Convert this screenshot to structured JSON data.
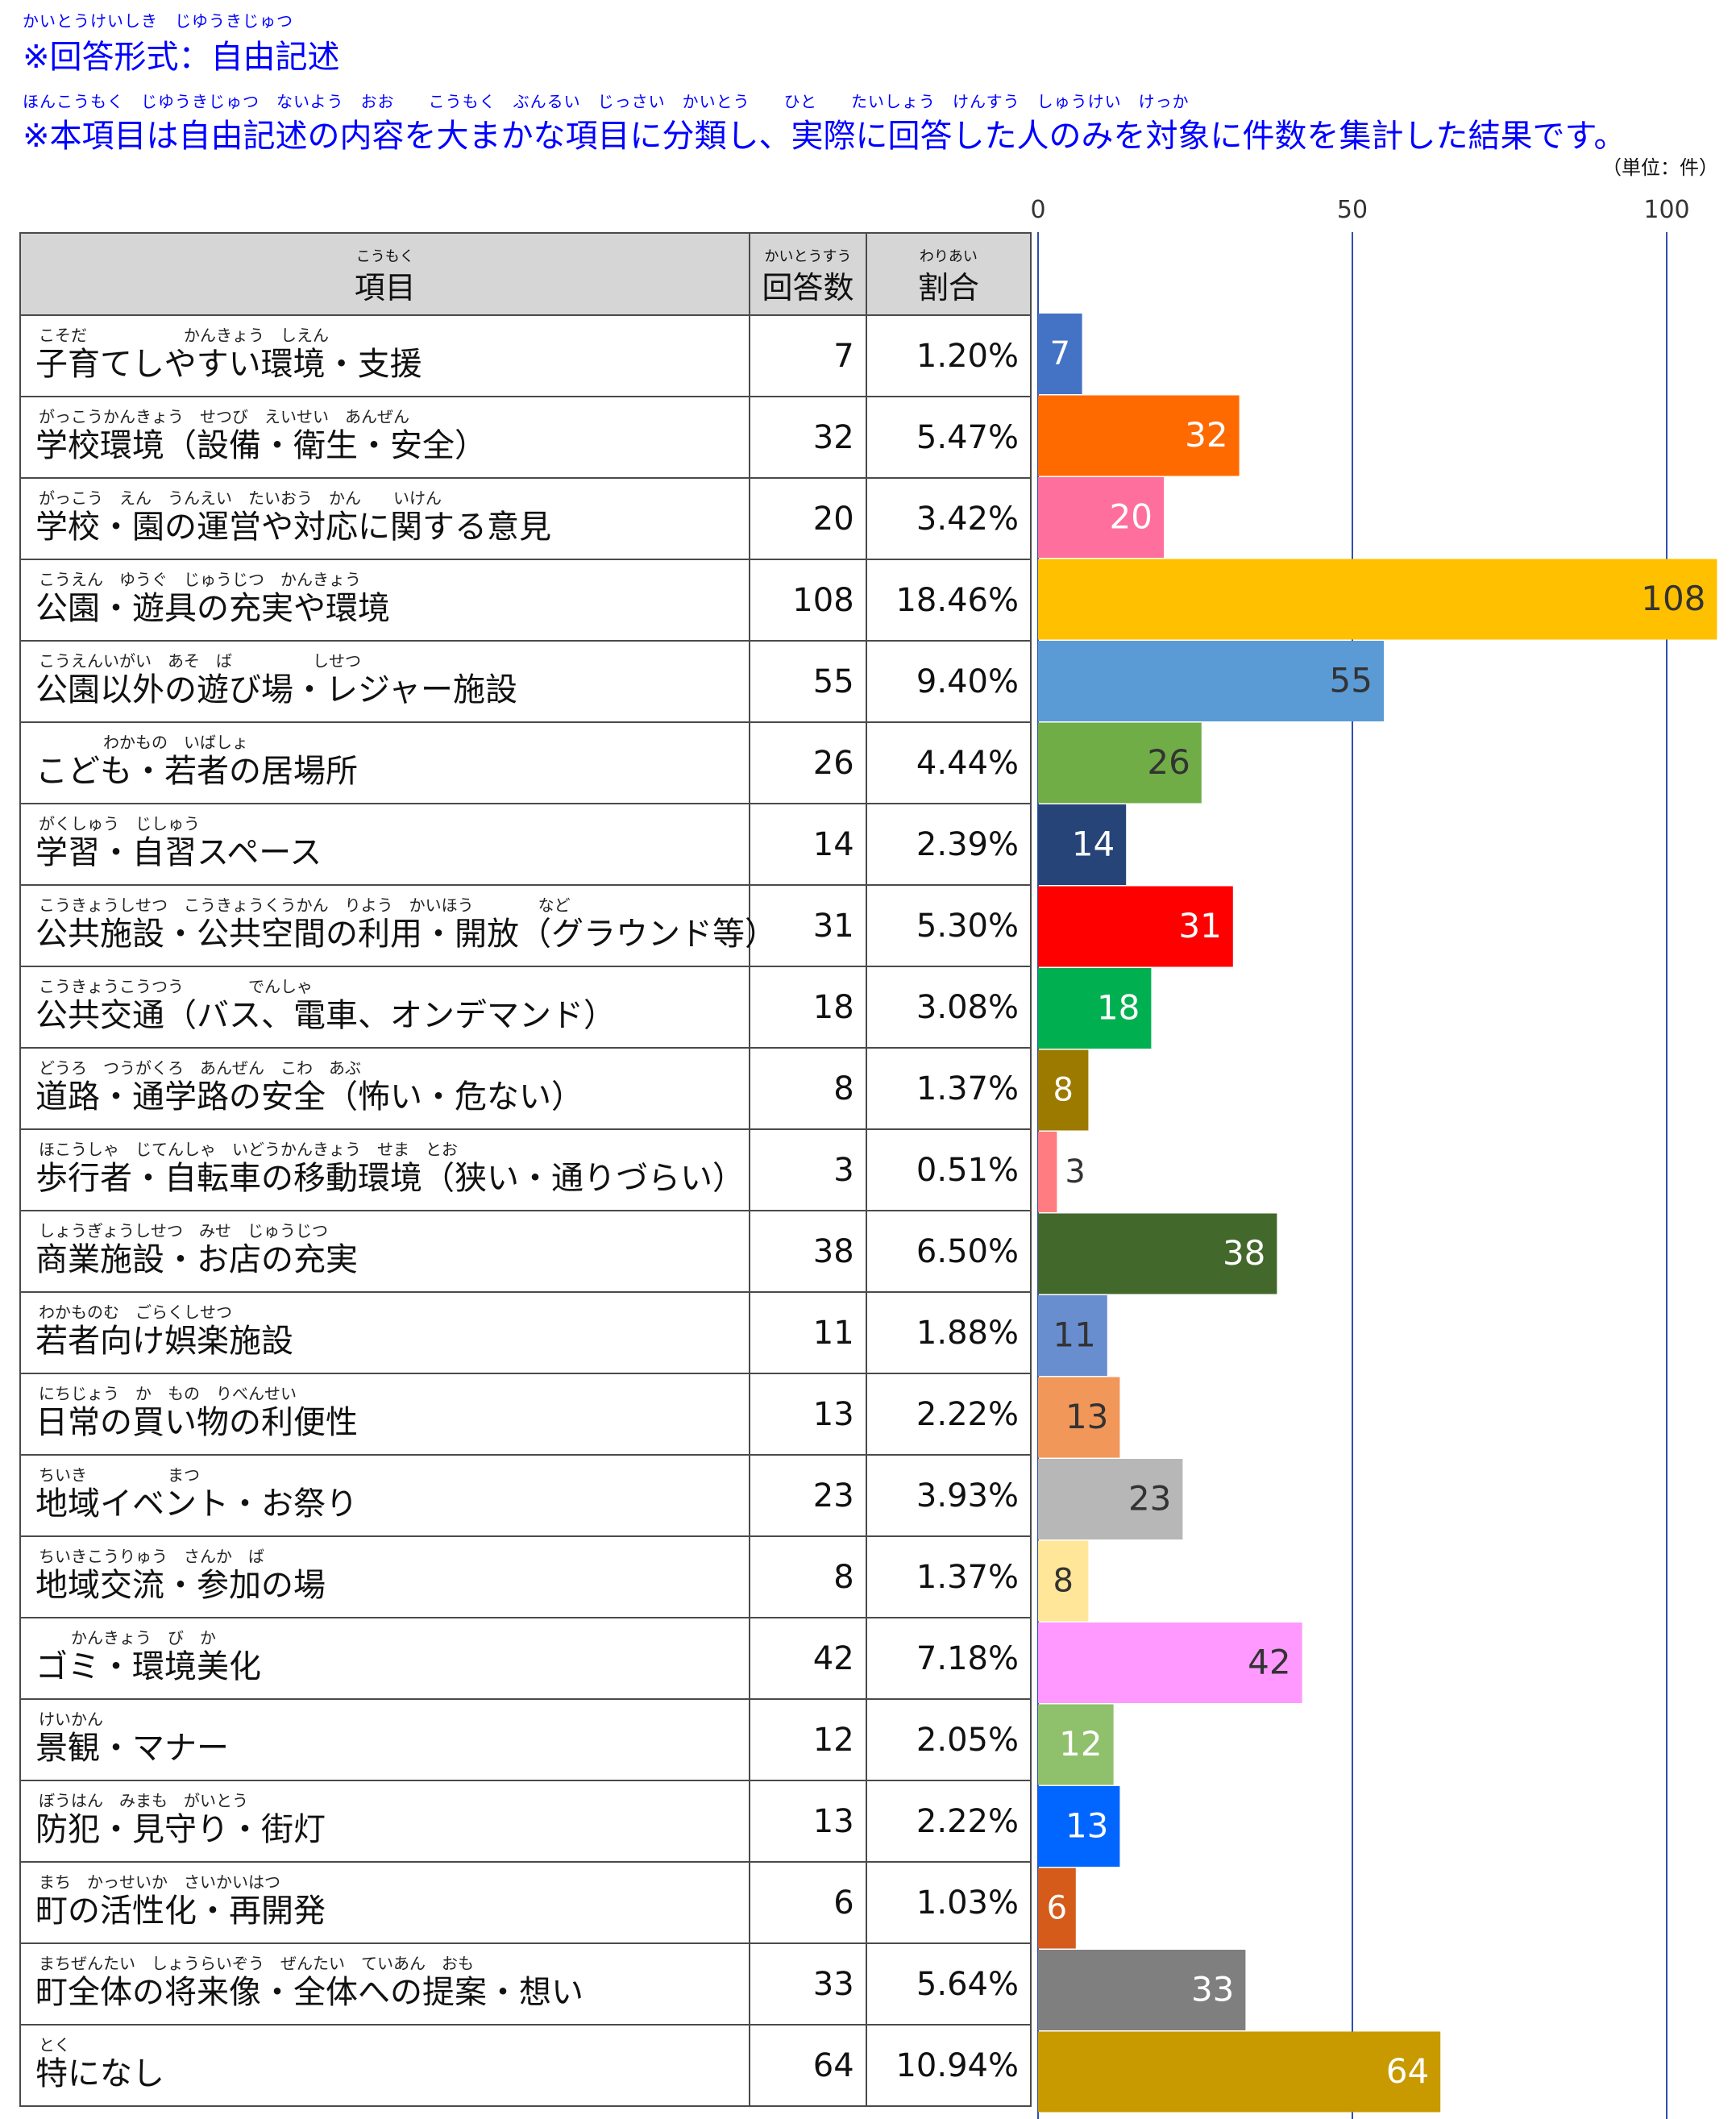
{
  "header": {
    "line1_furigana": "かいとうけいしき　じゆうきじゅつ",
    "line1": "※回答形式：自由記述",
    "line2_furigana": "ほんこうもく　じゆうきじゅつ　ないよう　おお　　こうもく　ぶんるい　じっさい　かいとう　　ひと　　たいしょう　けんすう　しゅうけい　けっか",
    "line2": "※本項目は自由記述の内容を大まかな項目に分類し、実際に回答した人のみを対象に件数を集計した結果です。",
    "unit": "（単位：件）"
  },
  "table": {
    "col_item_ruby": "こうもく",
    "col_item": "項目",
    "col_count_ruby": "かいとうすう",
    "col_count": "回答数",
    "col_pct_ruby": "わりあい",
    "col_pct": "割合",
    "rows": [
      {
        "ruby": "こそだ　　　　　　かんきょう　しえん",
        "label": "子育てしやすい環境・支援",
        "count": "7",
        "pct": "1.20%"
      },
      {
        "ruby": "がっこうかんきょう　せつび　えいせい　あんぜん",
        "label": "学校環境（設備・衛生・安全）",
        "count": "32",
        "pct": "5.47%"
      },
      {
        "ruby": "がっこう　えん　うんえい　たいおう　かん　　いけん",
        "label": "学校・園の運営や対応に関する意見",
        "count": "20",
        "pct": "3.42%"
      },
      {
        "ruby": "こうえん　ゆうぐ　じゅうじつ　かんきょう",
        "label": "公園・遊具の充実や環境",
        "count": "108",
        "pct": "18.46%"
      },
      {
        "ruby": "こうえんいがい　あそ　ば　　　　　しせつ",
        "label": "公園以外の遊び場・レジャー施設",
        "count": "55",
        "pct": "9.40%"
      },
      {
        "ruby": "　　　　わかもの　いばしょ",
        "label": "こども・若者の居場所",
        "count": "26",
        "pct": "4.44%"
      },
      {
        "ruby": "がくしゅう　じしゅう",
        "label": "学習・自習スペース",
        "count": "14",
        "pct": "2.39%"
      },
      {
        "ruby": "こうきょうしせつ　こうきょうくうかん　りよう　かいほう　　　　など",
        "label": "公共施設・公共空間の利用・開放（グラウンド等）",
        "count": "31",
        "pct": "5.30%"
      },
      {
        "ruby": "こうきょうこうつう　　　　でんしゃ",
        "label": "公共交通（バス、電車、オンデマンド）",
        "count": "18",
        "pct": "3.08%"
      },
      {
        "ruby": "どうろ　つうがくろ　あんぜん　こわ　あぶ",
        "label": "道路・通学路の安全（怖い・危ない）",
        "count": "8",
        "pct": "1.37%"
      },
      {
        "ruby": "ほこうしゃ　じてんしゃ　いどうかんきょう　せま　とお",
        "label": "歩行者・自転車の移動環境（狭い・通りづらい）",
        "count": "3",
        "pct": "0.51%"
      },
      {
        "ruby": "しょうぎょうしせつ　みせ　じゅうじつ",
        "label": "商業施設・お店の充実",
        "count": "38",
        "pct": "6.50%"
      },
      {
        "ruby": "わかものむ　ごらくしせつ",
        "label": "若者向け娯楽施設",
        "count": "11",
        "pct": "1.88%"
      },
      {
        "ruby": "にちじょう　か　もの　りべんせい",
        "label": "日常の買い物の利便性",
        "count": "13",
        "pct": "2.22%"
      },
      {
        "ruby": "ちいき　　　　　まつ",
        "label": "地域イベント・お祭り",
        "count": "23",
        "pct": "3.93%"
      },
      {
        "ruby": "ちいきこうりゅう　さんか　ば",
        "label": "地域交流・参加の場",
        "count": "8",
        "pct": "1.37%"
      },
      {
        "ruby": "　　かんきょう　び　か",
        "label": "ゴミ・環境美化",
        "count": "42",
        "pct": "7.18%"
      },
      {
        "ruby": "けいかん",
        "label": "景観・マナー",
        "count": "12",
        "pct": "2.05%"
      },
      {
        "ruby": "ぼうはん　みまも　がいとう",
        "label": "防犯・見守り・街灯",
        "count": "13",
        "pct": "2.22%"
      },
      {
        "ruby": "まち　かっせいか　さいかいはつ",
        "label": "町の活性化・再開発",
        "count": "6",
        "pct": "1.03%"
      },
      {
        "ruby": "まちぜんたい　しょうらいぞう　ぜんたい　ていあん　おも",
        "label": "町全体の将来像・全体への提案・想い",
        "count": "33",
        "pct": "5.64%"
      },
      {
        "ruby": "とく",
        "label": "特になし",
        "count": "64",
        "pct": "10.94%"
      }
    ]
  },
  "chart_data": {
    "type": "bar",
    "orientation": "horizontal",
    "categories": [
      "子育てしやすい環境・支援",
      "学校環境（設備・衛生・安全）",
      "学校・園の運営や対応に関する意見",
      "公園・遊具の充実や環境",
      "公園以外の遊び場・レジャー施設",
      "こども・若者の居場所",
      "学習・自習スペース",
      "公共施設・公共空間の利用・開放（グラウンド等）",
      "公共交通（バス、電車、オンデマンド）",
      "道路・通学路の安全（怖い・危ない）",
      "歩行者・自転車の移動環境（狭い・通りづらい）",
      "商業施設・お店の充実",
      "若者向け娯楽施設",
      "日常の買い物の利便性",
      "地域イベント・お祭り",
      "地域交流・参加の場",
      "ゴミ・環境美化",
      "景観・マナー",
      "防犯・見守り・街灯",
      "町の活性化・再開発",
      "町全体の将来像・全体への提案・想い",
      "特になし"
    ],
    "values": [
      7,
      32,
      20,
      108,
      55,
      26,
      14,
      31,
      18,
      8,
      3,
      38,
      11,
      13,
      23,
      8,
      42,
      12,
      13,
      6,
      33,
      64
    ],
    "colors": [
      "#4472c4",
      "#ff6a00",
      "#ff6f9e",
      "#ffc000",
      "#5b9bd5",
      "#70ad47",
      "#264478",
      "#ff0000",
      "#00b050",
      "#9c7a00",
      "#ff7c80",
      "#43682b",
      "#698ed0",
      "#f1975a",
      "#b7b7b7",
      "#ffe699",
      "#ff99ff",
      "#8fc06b",
      "#0066ff",
      "#d55b1a",
      "#7f7f7f",
      "#c89a00"
    ],
    "label_colors": [
      "#ffffff",
      "#ffffff",
      "#ffffff",
      "#333333",
      "#333333",
      "#333333",
      "#ffffff",
      "#ffffff",
      "#ffffff",
      "#ffffff",
      "#333333",
      "#ffffff",
      "#333333",
      "#333333",
      "#333333",
      "#333333",
      "#333333",
      "#ffffff",
      "#ffffff",
      "#ffffff",
      "#ffffff",
      "#ffffff"
    ],
    "xticks": [
      "0",
      "50",
      "100"
    ],
    "xlim": [
      0,
      108
    ],
    "gridlines": [
      0,
      50,
      100
    ],
    "title": "",
    "xlabel": "",
    "ylabel": ""
  }
}
